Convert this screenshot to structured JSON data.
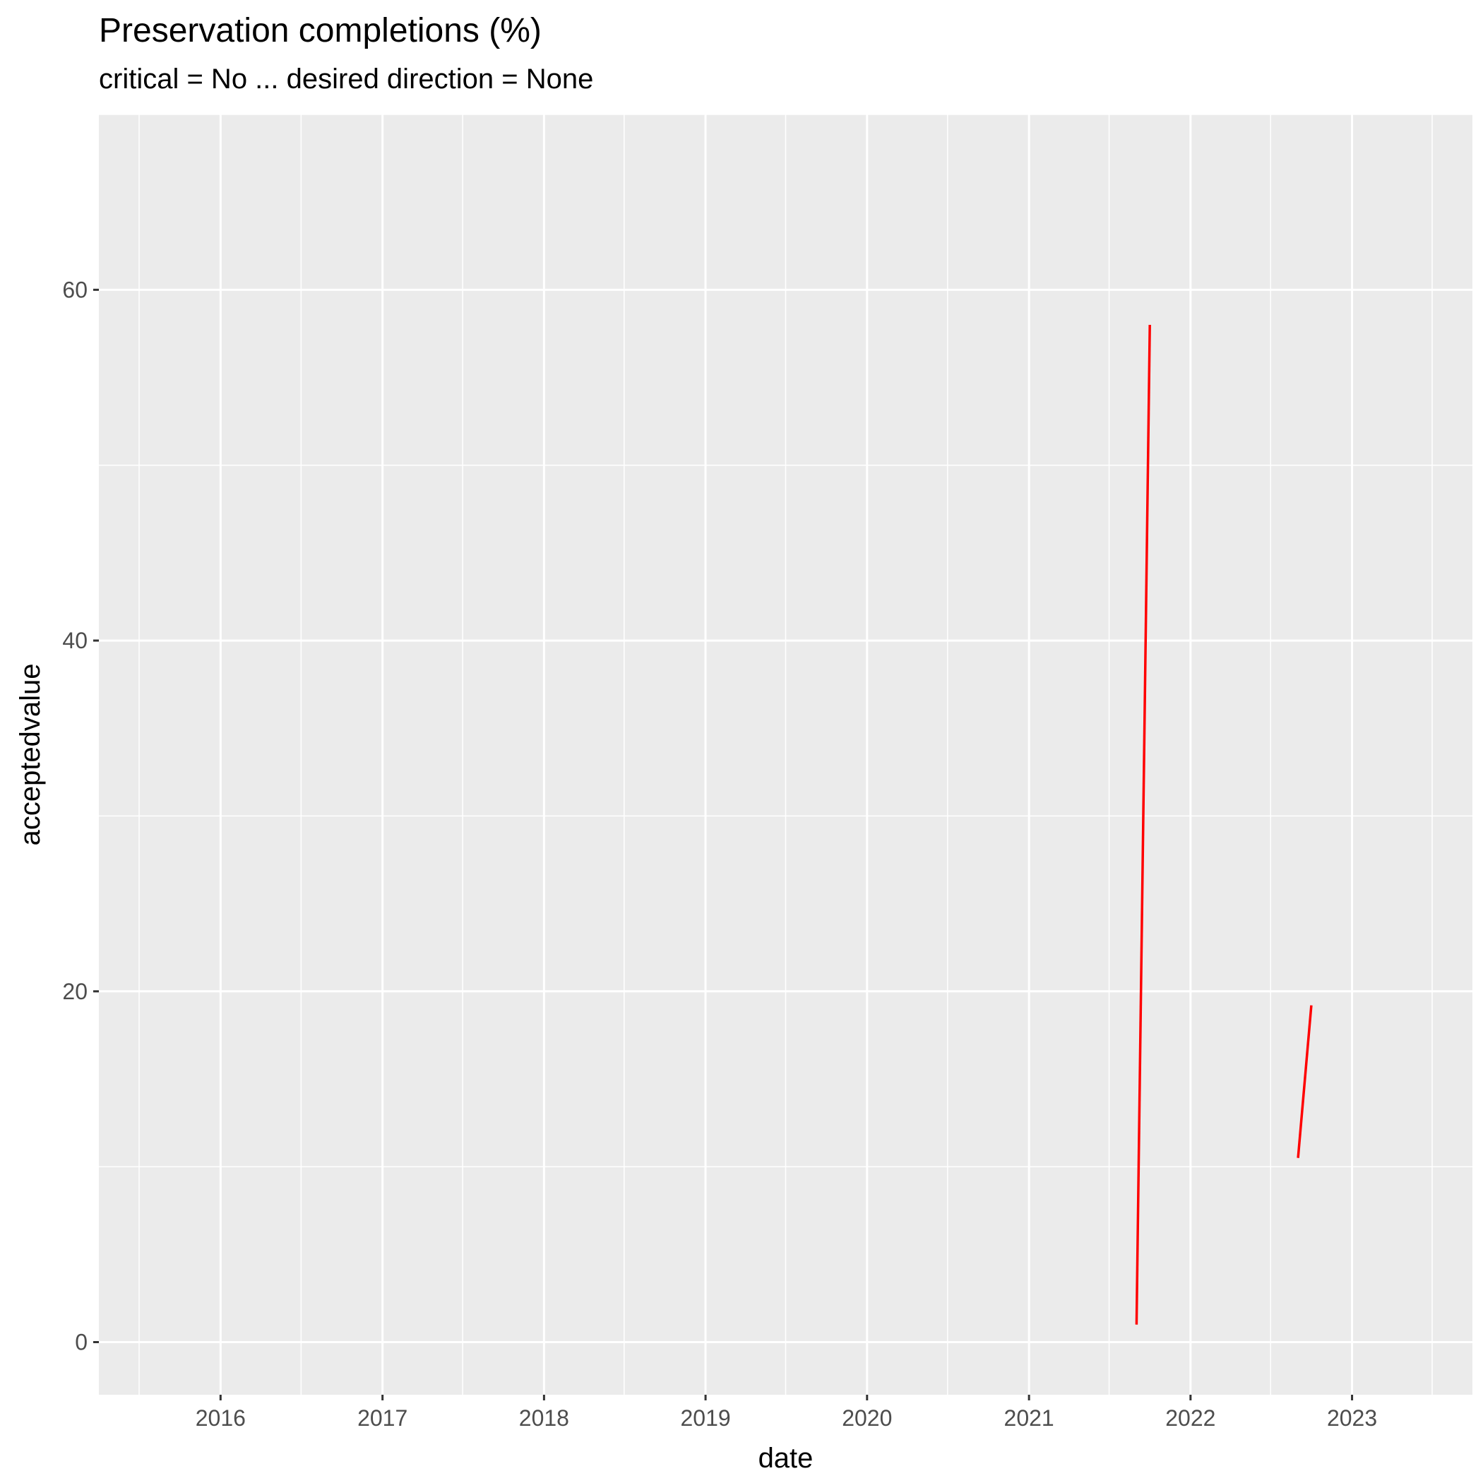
{
  "chart_data": {
    "type": "line",
    "title": "Preservation completions (%)",
    "subtitle": "critical = No ... desired direction = None",
    "xlabel": "date",
    "ylabel": "acceptedvalue",
    "x_ticks": [
      "2016",
      "2017",
      "2018",
      "2019",
      "2020",
      "2021",
      "2022",
      "2023"
    ],
    "y_ticks": [
      "0",
      "20",
      "40",
      "60"
    ],
    "xlim": [
      "2015-04-01",
      "2023-09-30"
    ],
    "ylim": [
      -3,
      70
    ],
    "grid": true,
    "line_color": "#FF0000",
    "series": [
      {
        "segments": [
          [
            [
              "2021-09-01",
              1
            ],
            [
              "2021-10-01",
              58
            ]
          ],
          [
            [
              "2022-09-01",
              10.5
            ],
            [
              "2022-10-01",
              19.2
            ]
          ]
        ]
      }
    ]
  }
}
